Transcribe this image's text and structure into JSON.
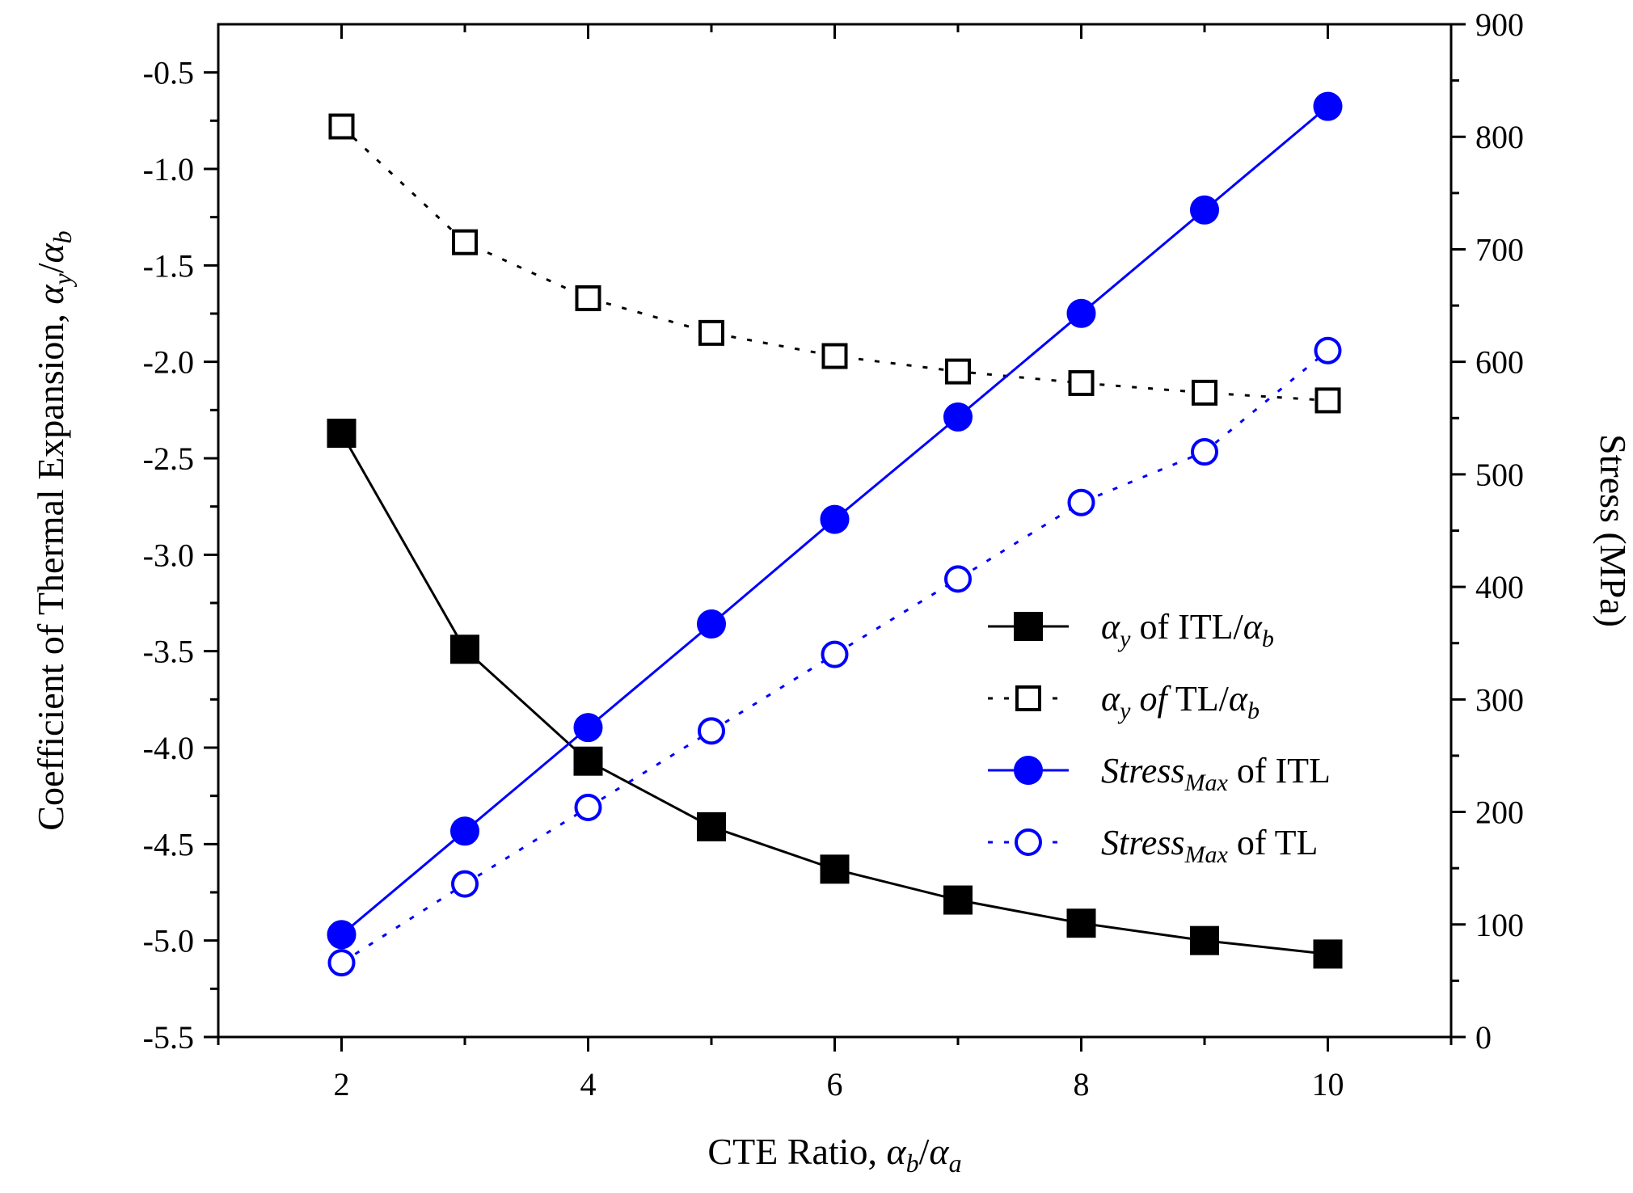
{
  "chart_data": {
    "type": "line",
    "x_axis": {
      "label": "CTE Ratio, ",
      "label_math": [
        "α",
        "b",
        "/",
        "α",
        "a"
      ],
      "range": [
        1,
        11
      ],
      "ticks": [
        2,
        4,
        6,
        8,
        10
      ],
      "tick_labels": [
        "2",
        "4",
        "6",
        "8",
        "10"
      ]
    },
    "y_left_axis": {
      "label": "Coefficient of Thermal Expansion, ",
      "label_math": [
        "α",
        "y",
        "/",
        "α",
        "b"
      ],
      "range": [
        -5.5,
        -0.25
      ],
      "ticks": [
        -5.5,
        -5.0,
        -4.5,
        -4.0,
        -3.5,
        -3.0,
        -2.5,
        -2.0,
        -1.5,
        -1.0,
        -0.5
      ],
      "tick_labels": [
        "-5.5",
        "-5.0",
        "-4.5",
        "-4.0",
        "-3.5",
        "-3.0",
        "-2.5",
        "-2.0",
        "-1.5",
        "-1.0",
        "-0.5"
      ]
    },
    "y_right_axis": {
      "label": "Stress (MPa)",
      "range": [
        0,
        900
      ],
      "ticks": [
        0,
        100,
        200,
        300,
        400,
        500,
        600,
        700,
        800,
        900
      ],
      "tick_labels": [
        "0",
        "100",
        "200",
        "300",
        "400",
        "500",
        "600",
        "700",
        "800",
        "900"
      ]
    },
    "x": [
      2,
      3,
      4,
      5,
      6,
      7,
      8,
      9,
      10
    ],
    "series": [
      {
        "name": "αy of ITL/αb",
        "axis": "left",
        "color": "#000000",
        "marker": "square-filled",
        "line": "solid",
        "values": [
          -2.37,
          -3.49,
          -4.07,
          -4.41,
          -4.63,
          -4.79,
          -4.91,
          -5.0,
          -5.07
        ],
        "legend_parts": [
          {
            "t": "α",
            "style": "italic"
          },
          {
            "t": "y",
            "style": "italic-sub"
          },
          {
            "t": " of ITL/",
            "style": "normal"
          },
          {
            "t": "α",
            "style": "italic"
          },
          {
            "t": "b",
            "style": "italic-sub"
          }
        ]
      },
      {
        "name": "αy of TL/αb",
        "axis": "left",
        "color": "#000000",
        "marker": "square-open",
        "line": "dotted",
        "values": [
          -0.78,
          -1.38,
          -1.67,
          -1.85,
          -1.97,
          -2.05,
          -2.11,
          -2.16,
          -2.2
        ],
        "legend_parts": [
          {
            "t": "α",
            "style": "italic"
          },
          {
            "t": "y",
            "style": "italic-sub"
          },
          {
            "t": " ",
            "style": "normal"
          },
          {
            "t": "of",
            "style": "italic"
          },
          {
            "t": " TL/",
            "style": "normal"
          },
          {
            "t": "α",
            "style": "italic"
          },
          {
            "t": "b",
            "style": "italic-sub"
          }
        ]
      },
      {
        "name": "StressMax of ITL",
        "axis": "right",
        "color": "#0000ff",
        "marker": "circle-filled",
        "line": "solid",
        "values": [
          91,
          183,
          275,
          367,
          460,
          551,
          643,
          735,
          827
        ],
        "legend_parts": [
          {
            "t": "Stress",
            "style": "italic"
          },
          {
            "t": "Max",
            "style": "italic-sub"
          },
          {
            "t": " of ITL",
            "style": "normal"
          }
        ]
      },
      {
        "name": "StressMax of TL",
        "axis": "right",
        "color": "#0000ff",
        "marker": "circle-open",
        "line": "dotted",
        "values": [
          66,
          136,
          204,
          272,
          340,
          407,
          475,
          520,
          610
        ],
        "legend_parts": [
          {
            "t": "Stress",
            "style": "italic"
          },
          {
            "t": "Max",
            "style": "italic-sub"
          },
          {
            "t": " of TL",
            "style": "normal"
          }
        ]
      }
    ],
    "legend_position": "center-right",
    "grid": false
  }
}
